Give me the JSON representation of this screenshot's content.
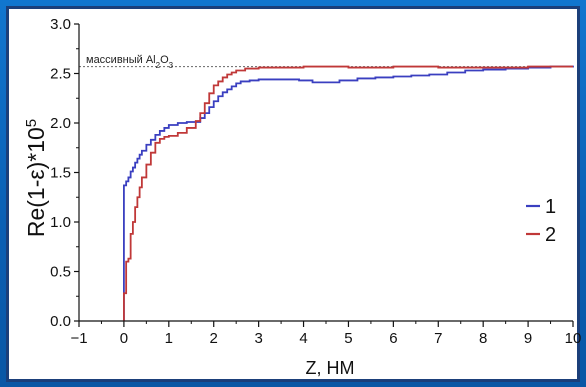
{
  "chart_data": {
    "type": "line",
    "xlabel": "Z, НМ",
    "ylabel": "Re(1-ε)*10",
    "ylabel_exp": "5",
    "xlim": [
      -1,
      10
    ],
    "ylim": [
      0,
      3.0
    ],
    "xticks": [
      "−1",
      "0",
      "1",
      "2",
      "3",
      "4",
      "5",
      "6",
      "7",
      "8",
      "9",
      "10"
    ],
    "yticks": [
      "0.0",
      "0.5",
      "1.0",
      "1.5",
      "2.0",
      "2.5",
      "3.0"
    ],
    "reference_line": {
      "y": 2.57,
      "label_prefix": "массивный Al",
      "label_sub1": "2",
      "label_mid": "O",
      "label_sub2": "3"
    },
    "legend_position": "right",
    "series": [
      {
        "name": "1",
        "color": "#3a3fc0",
        "x": [
          0,
          0.05,
          0.1,
          0.15,
          0.2,
          0.25,
          0.3,
          0.35,
          0.4,
          0.5,
          0.6,
          0.7,
          0.8,
          0.9,
          1.0,
          1.2,
          1.4,
          1.6,
          1.7,
          1.8,
          1.9,
          2.0,
          2.1,
          2.2,
          2.3,
          2.4,
          2.5,
          2.6,
          2.8,
          3.0,
          3.3,
          3.6,
          3.9,
          4.2,
          4.5,
          4.8,
          5.2,
          5.6,
          6.0,
          6.4,
          6.8,
          7.2,
          7.6,
          8.0,
          8.5,
          9.0,
          9.5,
          10.0
        ],
        "y": [
          1.37,
          1.41,
          1.45,
          1.51,
          1.55,
          1.6,
          1.64,
          1.68,
          1.72,
          1.78,
          1.83,
          1.88,
          1.92,
          1.95,
          1.98,
          2.0,
          2.01,
          2.01,
          2.05,
          2.1,
          2.16,
          2.22,
          2.27,
          2.31,
          2.34,
          2.37,
          2.4,
          2.42,
          2.43,
          2.44,
          2.44,
          2.44,
          2.43,
          2.41,
          2.41,
          2.43,
          2.45,
          2.46,
          2.47,
          2.48,
          2.49,
          2.51,
          2.53,
          2.54,
          2.55,
          2.56,
          2.57,
          2.58
        ]
      },
      {
        "name": "2",
        "color": "#c03838",
        "x": [
          0,
          0.05,
          0.1,
          0.15,
          0.2,
          0.25,
          0.3,
          0.35,
          0.4,
          0.5,
          0.6,
          0.7,
          0.8,
          0.9,
          1.0,
          1.2,
          1.4,
          1.6,
          1.7,
          1.8,
          1.9,
          2.0,
          2.1,
          2.2,
          2.3,
          2.4,
          2.5,
          2.7,
          3.0,
          3.5,
          4.0,
          4.5,
          5.0,
          6.0,
          7.0,
          8.0,
          9.0,
          10.0
        ],
        "y": [
          0.28,
          0.6,
          0.63,
          0.88,
          1.0,
          1.15,
          1.25,
          1.35,
          1.45,
          1.58,
          1.7,
          1.8,
          1.84,
          1.86,
          1.87,
          1.9,
          1.95,
          2.02,
          2.1,
          2.2,
          2.3,
          2.38,
          2.42,
          2.46,
          2.49,
          2.51,
          2.53,
          2.55,
          2.56,
          2.56,
          2.57,
          2.57,
          2.56,
          2.57,
          2.56,
          2.56,
          2.57,
          2.57
        ]
      }
    ]
  }
}
